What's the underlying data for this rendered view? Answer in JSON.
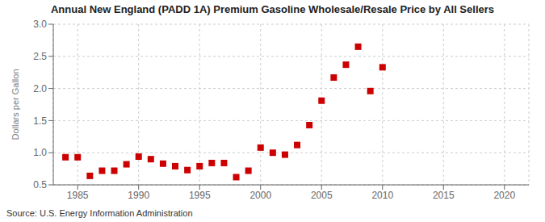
{
  "chart_data": {
    "type": "scatter",
    "title": "Annual New England (PADD 1A) Premium Gasoline Wholesale/Resale Price by All Sellers",
    "ylabel": "Dollars per Gallon",
    "annotation": "Source: U.S. Energy Information Administration",
    "x": [
      1984,
      1985,
      1986,
      1987,
      1988,
      1989,
      1990,
      1991,
      1992,
      1993,
      1994,
      1995,
      1996,
      1997,
      1998,
      1999,
      2000,
      2001,
      2002,
      2003,
      2004,
      2005,
      2006,
      2007,
      2008,
      2009,
      2010
    ],
    "values": [
      0.93,
      0.93,
      0.64,
      0.72,
      0.72,
      0.82,
      0.94,
      0.9,
      0.83,
      0.79,
      0.73,
      0.79,
      0.84,
      0.84,
      0.62,
      0.72,
      1.08,
      1.0,
      0.97,
      1.12,
      1.43,
      1.81,
      2.17,
      2.37,
      2.65,
      1.96,
      2.33
    ],
    "color": "#cc0000",
    "marker": "square",
    "xlim": [
      1983,
      2022
    ],
    "ylim": [
      0.5,
      3.0
    ],
    "xticks": [
      1985,
      1990,
      1995,
      2000,
      2005,
      2010,
      2015,
      2020
    ],
    "yticks": [
      0.5,
      {
        "value": 1,
        "label": "1.0"
      },
      1.5,
      {
        "value": 2,
        "label": "2.0"
      },
      2.5,
      {
        "value": 3,
        "label": "3.0"
      }
    ],
    "grid": true
  }
}
